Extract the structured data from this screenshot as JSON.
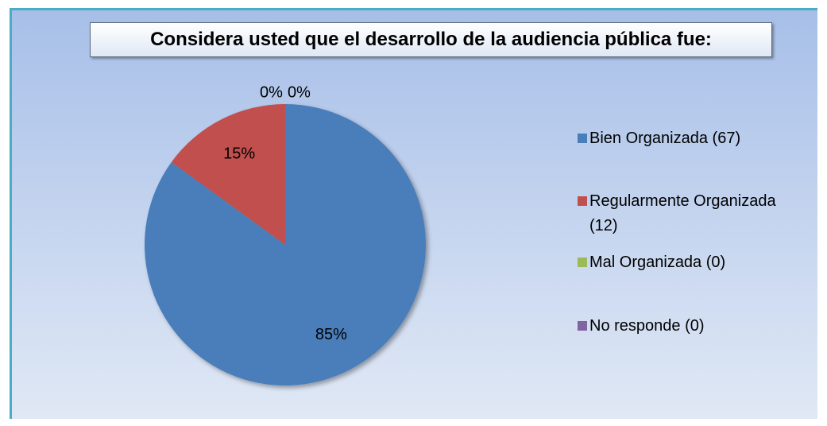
{
  "chart_data": {
    "type": "pie",
    "title": "Considera usted que el desarrollo de la audiencia pública fue:",
    "categories": [
      "Bien Organizada (67)",
      "Regularmente Organizada (12)",
      "Mal Organizada (0)",
      "No responde (0)"
    ],
    "values": [
      85,
      15,
      0,
      0
    ],
    "value_labels": [
      "85%",
      "15%",
      "0%",
      "0%"
    ],
    "colors": [
      "#4a7ebb",
      "#c0504d",
      "#9bbb59",
      "#8064a2"
    ],
    "legend": "right"
  }
}
